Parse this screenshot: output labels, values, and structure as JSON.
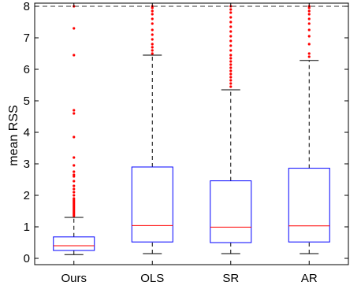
{
  "chart_data": {
    "type": "box",
    "xlabel": "",
    "ylabel": "mean RSS",
    "ylim": [
      -0.2,
      8.1
    ],
    "yticks": [
      0,
      1,
      2,
      3,
      4,
      5,
      6,
      7,
      8
    ],
    "grid": false,
    "reference_line": {
      "y": 8,
      "style": "dashed"
    },
    "colors": {
      "box": "#0000ff",
      "median": "#ff0000",
      "outlier": "#ff0000",
      "whisker": "#000000",
      "reference": "#333333"
    },
    "categories": [
      "Ours",
      "OLS",
      "SR",
      "AR"
    ],
    "boxes": [
      {
        "name": "Ours",
        "whisker_low": 0.12,
        "q1": 0.25,
        "median": 0.4,
        "q3": 0.68,
        "whisker_high": 1.3,
        "outliers": [
          1.35,
          1.4,
          1.45,
          1.5,
          1.55,
          1.6,
          1.65,
          1.7,
          1.75,
          1.8,
          1.85,
          1.9,
          2.0,
          2.1,
          2.2,
          2.3,
          2.45,
          2.6,
          2.65,
          2.75,
          2.95,
          3.2,
          3.85,
          4.6,
          4.7,
          6.45,
          7.3,
          8.0
        ]
      },
      {
        "name": "OLS",
        "whisker_low": 0.15,
        "q1": 0.52,
        "median": 1.04,
        "q3": 2.9,
        "whisker_high": 6.45,
        "outliers": [
          6.5,
          6.6,
          6.7,
          6.8,
          6.95,
          7.1,
          7.25,
          7.45,
          7.6,
          7.75,
          7.85,
          7.95,
          8.0
        ]
      },
      {
        "name": "SR",
        "whisker_low": 0.15,
        "q1": 0.5,
        "median": 0.99,
        "q3": 2.46,
        "whisker_high": 5.35,
        "outliers": [
          5.45,
          5.55,
          5.65,
          5.75,
          5.85,
          5.95,
          6.05,
          6.15,
          6.25,
          6.35,
          6.45,
          6.6,
          6.75,
          6.9,
          7.05,
          7.2,
          7.35,
          7.5,
          7.65,
          7.8,
          7.9,
          8.0
        ]
      },
      {
        "name": "AR",
        "whisker_low": 0.15,
        "q1": 0.52,
        "median": 1.03,
        "q3": 2.86,
        "whisker_high": 6.28,
        "outliers": [
          6.4,
          6.5,
          6.8,
          7.05,
          7.25,
          7.45,
          7.6,
          7.75,
          7.85,
          7.95,
          8.0
        ]
      }
    ]
  }
}
